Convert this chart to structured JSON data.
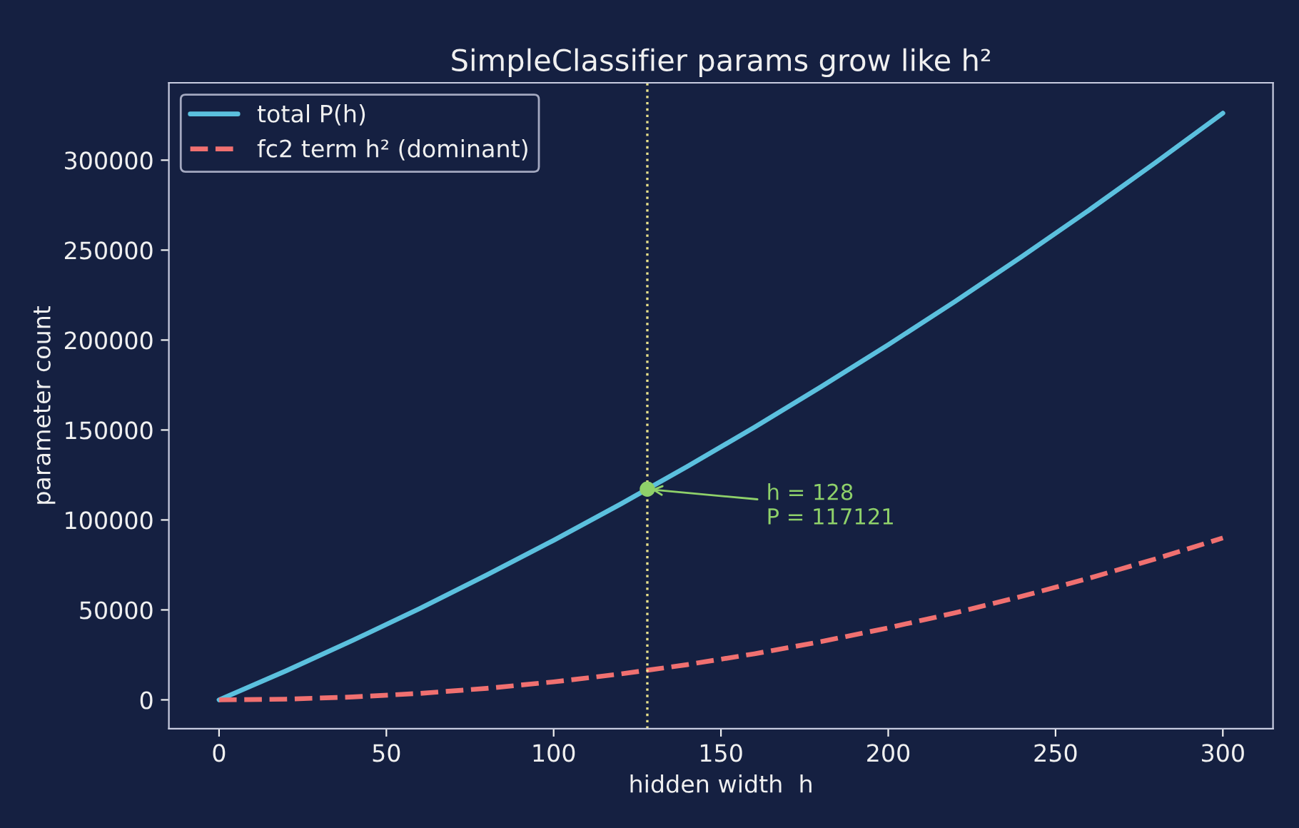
{
  "chart_data": {
    "type": "line",
    "title": "SimpleClassifier params grow like h²",
    "xlabel": "hidden width  h",
    "ylabel": "parameter count",
    "x": [
      0,
      20,
      40,
      60,
      80,
      100,
      120,
      140,
      160,
      180,
      200,
      220,
      240,
      260,
      280,
      300
    ],
    "series": [
      {
        "name": "total P(h)",
        "color": "#5bc0de",
        "line_style": "solid",
        "values": [
          0,
          16100,
          33100,
          50800,
          69400,
          88700,
          108800,
          129800,
          151500,
          174100,
          197400,
          221500,
          246500,
          272200,
          298800,
          326100
        ]
      },
      {
        "name": "fc2 term h² (dominant)",
        "color": "#f07070",
        "line_style": "dashed",
        "values": [
          0,
          400,
          1600,
          3600,
          6400,
          10000,
          14400,
          19600,
          25600,
          32400,
          40000,
          48400,
          57600,
          67600,
          78400,
          90000
        ]
      },
      {
        "type": "scatter",
        "marker": "circle",
        "color": "#8fd16a",
        "x": [
          128
        ],
        "values": [
          117121
        ]
      }
    ],
    "ref_lines": [
      {
        "axis": "x",
        "value": 128,
        "color": "#e8e08a",
        "line_style": "dotted"
      }
    ],
    "annotations": [
      {
        "text": "h = 128\nP = 117121",
        "x": 128,
        "y": 117121
      }
    ],
    "xlim": [
      -15,
      315
    ],
    "ylim": [
      -16000,
      343000
    ],
    "xticks": [
      0,
      50,
      100,
      150,
      200,
      250,
      300
    ],
    "yticks": [
      0,
      50000,
      100000,
      150000,
      200000,
      250000,
      300000
    ],
    "grid": false,
    "legend": "top left"
  }
}
